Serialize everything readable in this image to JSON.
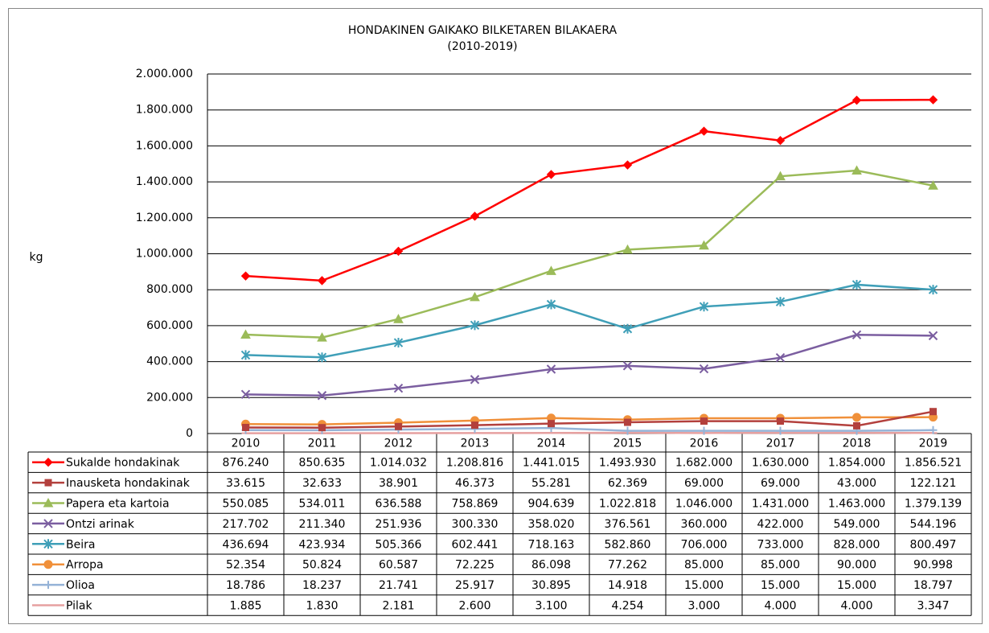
{
  "chart_data": {
    "type": "line",
    "title": "HONDAKINEN GAIKAKO BILKETAREN BILAKAERA",
    "subtitle": "(2010-2019)",
    "y_label": "kg",
    "categories": [
      "2010",
      "2011",
      "2012",
      "2013",
      "2014",
      "2015",
      "2016",
      "2017",
      "2018",
      "2019"
    ],
    "ylim": [
      0,
      2000000
    ],
    "yticks": [
      0,
      {
        "value": 200000,
        "label": "200.000"
      },
      {
        "value": 400000,
        "label": "400.000"
      },
      {
        "value": 600000,
        "label": "600.000"
      },
      {
        "value": 800000,
        "label": "800.000"
      },
      {
        "value": 1000000,
        "label": "1.000.000"
      },
      {
        "value": 1200000,
        "label": "1.200.000"
      },
      {
        "value": 1400000,
        "label": "1.400.000"
      },
      {
        "value": 1600000,
        "label": "1.600.000"
      },
      {
        "value": 1800000,
        "label": "1.800.000"
      },
      {
        "value": 2000000,
        "label": "2.000.000"
      }
    ],
    "grid": true,
    "series": [
      {
        "name": "Sukalde hondakinak",
        "color": "#ff0000",
        "marker": "diamond",
        "values": [
          876240,
          850635,
          1014032,
          1208816,
          1441015,
          1493930,
          1682000,
          1630000,
          1854000,
          1856521
        ],
        "value_labels": [
          "876.240",
          "850.635",
          "1.014.032",
          "1.208.816",
          "1.441.015",
          "1.493.930",
          "1.682.000",
          "1.630.000",
          "1.854.000",
          "1.856.521"
        ]
      },
      {
        "name": "Inausketa hondakinak",
        "color": "#b3403d",
        "marker": "square",
        "values": [
          33615,
          32633,
          38901,
          46373,
          55281,
          62369,
          69000,
          69000,
          43000,
          122121
        ],
        "value_labels": [
          "33.615",
          "32.633",
          "38.901",
          "46.373",
          "55.281",
          "62.369",
          "69.000",
          "69.000",
          "43.000",
          "122.121"
        ]
      },
      {
        "name": "Papera eta kartoia",
        "color": "#9bbb59",
        "marker": "triangle",
        "values": [
          550085,
          534011,
          636588,
          758869,
          904639,
          1022818,
          1046000,
          1431000,
          1463000,
          1379139
        ],
        "value_labels": [
          "550.085",
          "534.011",
          "636.588",
          "758.869",
          "904.639",
          "1.022.818",
          "1.046.000",
          "1.431.000",
          "1.463.000",
          "1.379.139"
        ]
      },
      {
        "name": "Ontzi arinak",
        "color": "#7b5ea0",
        "marker": "x",
        "values": [
          217702,
          211340,
          251936,
          300330,
          358020,
          376561,
          360000,
          422000,
          549000,
          544196
        ],
        "value_labels": [
          "217.702",
          "211.340",
          "251.936",
          "300.330",
          "358.020",
          "376.561",
          "360.000",
          "422.000",
          "549.000",
          "544.196"
        ]
      },
      {
        "name": "Beira",
        "color": "#3f9fb8",
        "marker": "star",
        "values": [
          436694,
          423934,
          505366,
          602441,
          718163,
          582860,
          706000,
          733000,
          828000,
          800497
        ],
        "value_labels": [
          "436.694",
          "423.934",
          "505.366",
          "602.441",
          "718.163",
          "582.860",
          "706.000",
          "733.000",
          "828.000",
          "800.497"
        ]
      },
      {
        "name": "Arropa",
        "color": "#f0903a",
        "marker": "circle",
        "values": [
          52354,
          50824,
          60587,
          72225,
          86098,
          77262,
          85000,
          85000,
          90000,
          90998
        ],
        "value_labels": [
          "52.354",
          "50.824",
          "60.587",
          "72.225",
          "86.098",
          "77.262",
          "85.000",
          "85.000",
          "90.000",
          "90.998"
        ]
      },
      {
        "name": "Olioa",
        "color": "#95b3d7",
        "marker": "plus",
        "values": [
          18786,
          18237,
          21741,
          25917,
          30895,
          14918,
          15000,
          15000,
          15000,
          18797
        ],
        "value_labels": [
          "18.786",
          "18.237",
          "21.741",
          "25.917",
          "30.895",
          "14.918",
          "15.000",
          "15.000",
          "15.000",
          "18.797"
        ]
      },
      {
        "name": "Pilak",
        "color": "#e6a0a0",
        "marker": "dash",
        "values": [
          1885,
          1830,
          2181,
          2600,
          3100,
          4254,
          3000,
          4000,
          4000,
          3347
        ],
        "value_labels": [
          "1.885",
          "1.830",
          "2.181",
          "2.600",
          "3.100",
          "4.254",
          "3.000",
          "4.000",
          "4.000",
          "3.347"
        ]
      }
    ]
  }
}
